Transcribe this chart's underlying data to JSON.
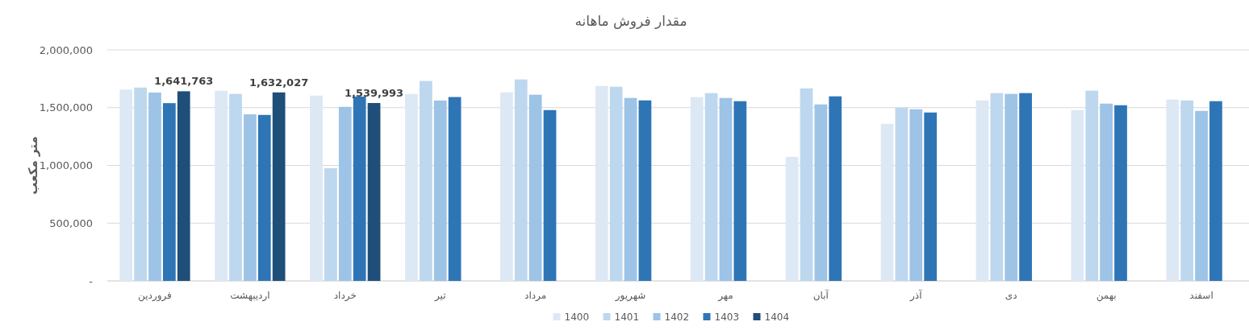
{
  "chart_data": {
    "type": "bar",
    "title": "مقدار فروش ماهانه",
    "ylabel": "متر مکعب",
    "categories": [
      "فروردین",
      "اردیبهشت",
      "خرداد",
      "تیر",
      "مرداد",
      "شهریور",
      "مهر",
      "آبان",
      "آذر",
      "دی",
      "بهمن",
      "اسفند"
    ],
    "series": [
      {
        "name": "1400",
        "color": "#dde8f5",
        "values": [
          1656000,
          1646000,
          1604000,
          1619000,
          1633000,
          1688000,
          1591000,
          1074000,
          1360000,
          1563000,
          1479000,
          1570000
        ]
      },
      {
        "name": "1401",
        "color": "#bdd7ee",
        "values": [
          1674000,
          1619000,
          976000,
          1731000,
          1744000,
          1681000,
          1626000,
          1667000,
          1500000,
          1626000,
          1647000,
          1563000
        ]
      },
      {
        "name": "1402",
        "color": "#9dc3e6",
        "values": [
          1631000,
          1442000,
          1507000,
          1562000,
          1612000,
          1584000,
          1584000,
          1528000,
          1486000,
          1619000,
          1535000,
          1472000
        ]
      },
      {
        "name": "1403",
        "color": "#2e75b6",
        "values": [
          1539000,
          1437000,
          1596000,
          1592000,
          1479000,
          1563000,
          1556000,
          1598000,
          1458000,
          1626000,
          1521000,
          1556000
        ]
      },
      {
        "name": "1404",
        "color": "#1f4e79",
        "values": [
          1641763,
          1632027,
          1539993,
          null,
          null,
          null,
          null,
          null,
          null,
          null,
          null,
          null
        ],
        "value_labels": [
          "1,641,763",
          "1,632,027",
          "1,539,993",
          null,
          null,
          null,
          null,
          null,
          null,
          null,
          null,
          null
        ]
      }
    ],
    "ylim": [
      0,
      2000000
    ],
    "yticks": [
      {
        "value": 0,
        "label": "-"
      },
      {
        "value": 500000,
        "label": "500,000"
      },
      {
        "value": 1000000,
        "label": "1,000,000"
      },
      {
        "value": 1500000,
        "label": "1,500,000"
      },
      {
        "value": 2000000,
        "label": "2,000,000"
      }
    ],
    "grid": "y",
    "legend": "bottom"
  }
}
